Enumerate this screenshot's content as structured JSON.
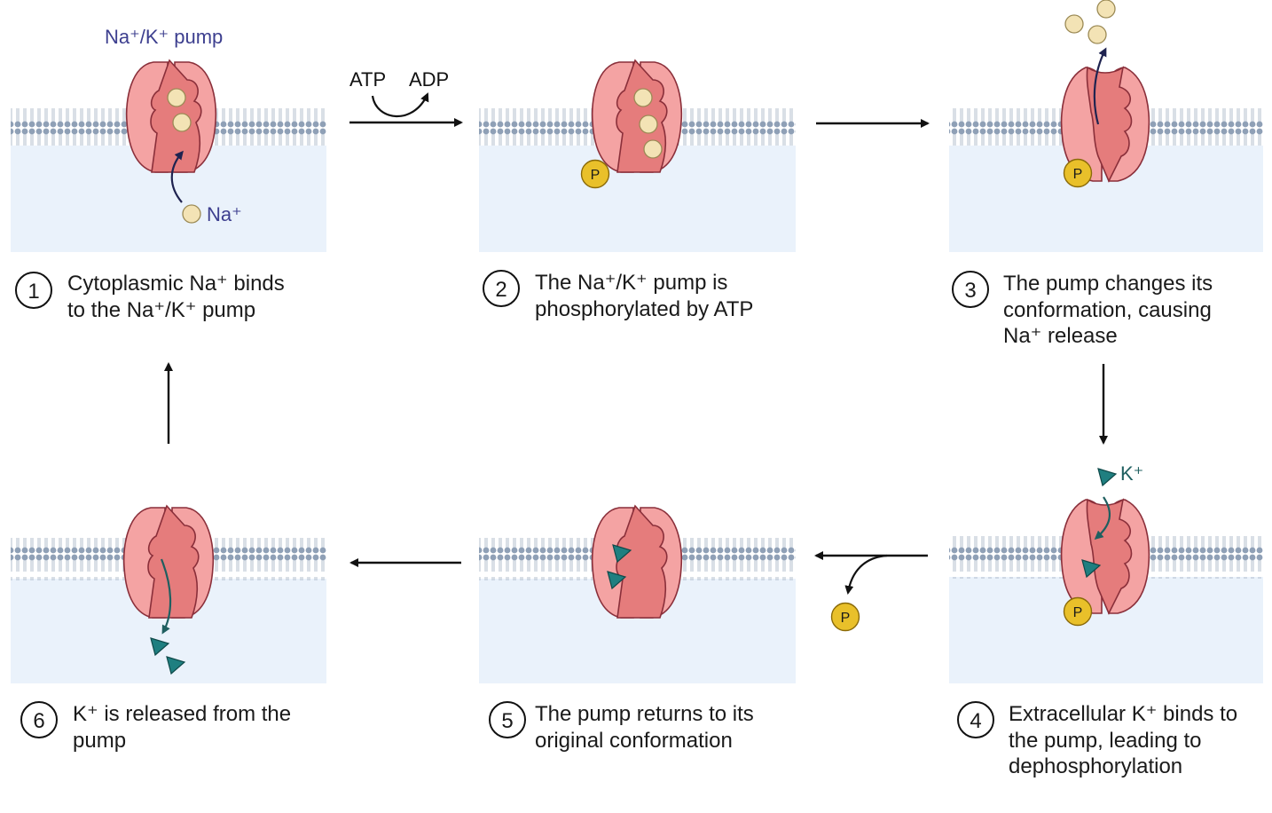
{
  "labels": {
    "pump_name": "Na⁺/K⁺ pump",
    "na_ion": "Na⁺",
    "k_ion": "K⁺",
    "atp": "ATP",
    "adp": "ADP",
    "phosphate": "P"
  },
  "steps": [
    {
      "number": "1",
      "lines": [
        "Cytoplasmic Na⁺ binds",
        "to the Na⁺/K⁺ pump"
      ]
    },
    {
      "number": "2",
      "lines": [
        "The Na⁺/K⁺ pump is",
        "phosphorylated by ATP"
      ]
    },
    {
      "number": "3",
      "lines": [
        "The pump changes its",
        "conformation, causing",
        "Na⁺ release"
      ]
    },
    {
      "number": "4",
      "lines": [
        "Extracellular K⁺ binds to",
        "the pump, leading to",
        "dephosphorylation"
      ]
    },
    {
      "number": "5",
      "lines": [
        "The pump returns to its",
        "original conformation"
      ]
    },
    {
      "number": "6",
      "lines": [
        "K⁺ is released from the",
        "pump"
      ]
    }
  ],
  "colors": {
    "cytoplasm": "#eaf2fb",
    "lipid_head": "#8fa0b6",
    "lipid_tail": "#b3bfce",
    "pump_outer": "#f4a3a3",
    "pump_inner": "#e57c7c",
    "pump_outline": "#8a2f3a",
    "sodium": "#f3e3b5",
    "potassium": "#1f7f80",
    "phosphate": "#e9c02a",
    "arrow_ion": "#1f2350",
    "pump_label": "#3d3f8f"
  }
}
